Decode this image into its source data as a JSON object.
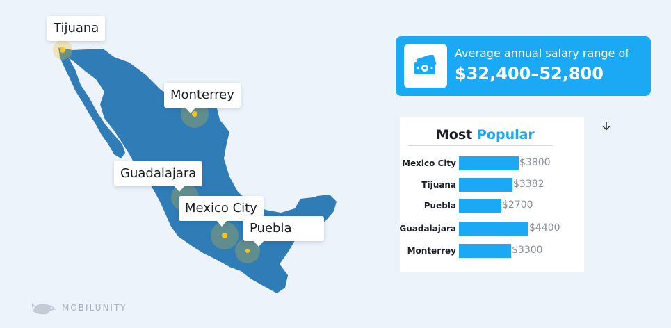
{
  "map": {
    "cities": [
      {
        "id": "tijuana",
        "label": "Tijuana"
      },
      {
        "id": "monterrey",
        "label": "Monterrey"
      },
      {
        "id": "guadalajara",
        "label": "Guadalajara"
      },
      {
        "id": "mexicocity",
        "label": "Mexico City"
      },
      {
        "id": "puebla",
        "label": "Puebla"
      }
    ],
    "colors": {
      "land": "#2f7cb6",
      "marker": "#f5c518",
      "background": "#edf3fa"
    }
  },
  "salary_card": {
    "icon": "money-icon",
    "caption": "Average annual salary range of",
    "value": "$32,400–52,800",
    "color": "#1ba9f5"
  },
  "popular": {
    "title_part1": "Most",
    "title_part2": "Popular",
    "bar_color": "#1ba9f5",
    "rows": [
      {
        "city": "Mexico City",
        "value": 3800,
        "label": "$3800"
      },
      {
        "city": "Tijuana",
        "value": 3382,
        "label": "$3382"
      },
      {
        "city": "Puebla",
        "value": 2700,
        "label": "$2700"
      },
      {
        "city": "Guadalajara",
        "value": 4400,
        "label": "$4400"
      },
      {
        "city": "Monterrey",
        "value": 3300,
        "label": "$3300"
      }
    ]
  },
  "side_icon": "down-arrow-icon",
  "brand": {
    "name": "MOBILUNITY",
    "icon": "whale-logo-icon"
  }
}
